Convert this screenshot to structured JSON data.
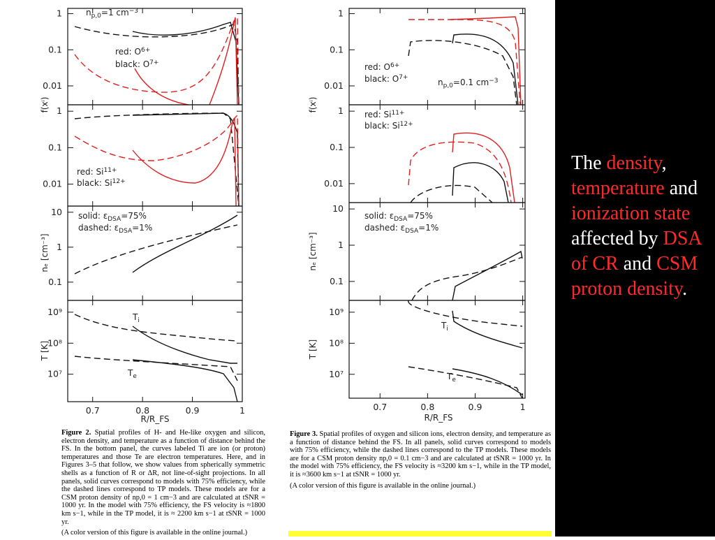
{
  "figures": [
    {
      "xlim": [
        0.65,
        1.0
      ],
      "xticks": [
        0.7,
        0.8,
        0.9,
        1
      ],
      "xlabel": "R/R_FS",
      "ylabels": [
        "f(xⁱ)",
        "nₑ [cm⁻³]",
        "T [K]"
      ],
      "log_y": true,
      "panels": [
        {
          "ylim": [
            0.003,
            1.4
          ],
          "yticks": [
            1,
            0.1,
            0.01
          ],
          "annotations": [
            [
              {
                "t": "n"
              },
              {
                "t": "p,0",
                "s": "sub"
              },
              {
                "t": "=1  cm"
              },
              {
                "t": "−3",
                "s": "sup"
              }
            ],
            [
              {
                "t": "red:   O"
              },
              {
                "t": "6+",
                "s": "sup"
              }
            ],
            [
              {
                "t": "black: O"
              },
              {
                "t": "7+",
                "s": "sup"
              }
            ]
          ]
        },
        {
          "ylim": [
            0.0025,
            1.5
          ],
          "yticks": [
            1,
            0.1,
            0.01
          ],
          "annotations": [
            [
              {
                "t": "red:   Si"
              },
              {
                "t": "11+",
                "s": "sup"
              }
            ],
            [
              {
                "t": "black: Si"
              },
              {
                "t": "12+",
                "s": "sup"
              }
            ]
          ]
        },
        {
          "ylim": [
            0.03,
            15
          ],
          "yticks": [
            10,
            1,
            0.1
          ],
          "annotations": [
            [
              {
                "t": "solid:    ε"
              },
              {
                "t": "DSA",
                "s": "sub"
              },
              {
                "t": "=75%"
              }
            ],
            [
              {
                "t": "dashed: ε"
              },
              {
                "t": "DSA",
                "s": "sub"
              },
              {
                "t": "=1%"
              }
            ]
          ]
        },
        {
          "ylim": [
            1300000,
            2400000000
          ],
          "yticks": [
            {
              "value": 1000000000,
              "label": "10⁹"
            },
            {
              "value": 100000000,
              "label": "10⁸"
            },
            {
              "value": 10000000,
              "label": "10⁷"
            }
          ],
          "annotations": [
            [
              {
                "t": "T"
              },
              {
                "t": "i",
                "s": "sub"
              }
            ],
            [
              {
                "t": "T"
              },
              {
                "t": "e",
                "s": "sub"
              }
            ]
          ]
        }
      ]
    },
    {
      "xlim": [
        0.635,
        1.005
      ],
      "xticks": [
        0.7,
        0.8,
        0.9,
        1
      ],
      "xlabel": "R/R_FS",
      "ylabels": [
        "f(xⁱ)",
        "nₑ [cm⁻³]",
        "T [K]"
      ],
      "log_y": true,
      "panels": [
        {
          "ylim": [
            0.003,
            1.4
          ],
          "yticks": [
            1,
            0.1,
            0.01
          ],
          "annotations": [
            [
              {
                "t": "red:   O"
              },
              {
                "t": "6+",
                "s": "sup"
              }
            ],
            [
              {
                "t": "black: O"
              },
              {
                "t": "7+",
                "s": "sup"
              }
            ],
            [
              {
                "t": "n"
              },
              {
                "t": "p,0",
                "s": "sub"
              },
              {
                "t": "=0.1  cm"
              },
              {
                "t": "−3",
                "s": "sup"
              }
            ]
          ]
        },
        {
          "ylim": [
            0.003,
            1.5
          ],
          "yticks": [
            1,
            0.1,
            0.01
          ],
          "annotations": [
            [
              {
                "t": "red:   Si"
              },
              {
                "t": "11+",
                "s": "sup"
              }
            ],
            [
              {
                "t": "black: Si"
              },
              {
                "t": "12+",
                "s": "sup"
              }
            ]
          ]
        },
        {
          "ylim": [
            0.03,
            15
          ],
          "yticks": [
            10,
            1,
            0.1
          ],
          "annotations": [
            [
              {
                "t": "solid:    ε"
              },
              {
                "t": "DSA",
                "s": "sub"
              },
              {
                "t": "=75%"
              }
            ],
            [
              {
                "t": "dashed: ε"
              },
              {
                "t": "DSA",
                "s": "sub"
              },
              {
                "t": "=1%"
              }
            ]
          ]
        },
        {
          "ylim": [
            1700000,
            2400000000
          ],
          "yticks": [
            {
              "value": 1000000000,
              "label": "10⁹"
            },
            {
              "value": 100000000,
              "label": "10⁸"
            },
            {
              "value": 10000000,
              "label": "10⁷"
            }
          ],
          "annotations": [
            [
              {
                "t": "T"
              },
              {
                "t": "i",
                "s": "sub"
              }
            ],
            [
              {
                "t": "T"
              },
              {
                "t": "e",
                "s": "sub"
              }
            ]
          ]
        }
      ]
    }
  ],
  "captions": [
    {
      "label": "Figure 2.",
      "text": " Spatial profiles of H- and He-like oxygen and silicon, electron density, and temperature as a function of distance behind the FS. In the bottom panel, the curves labeled Ti are ion (or proton) temperatures and those Te are electron temperatures. Here, and in Figures 3–5 that follow, we show values from spherically symmetric shells as a function of R or ΔR, not line-of-sight projections. In all panels, solid curves correspond to models with 75% efficiency, while the dashed lines correspond to TP models. These models are for a CSM proton density of np,0 = 1 cm−3 and are calculated at tSNR = 1000 yr. In the model with 75% efficiency, the FS velocity is ≈1800 km s−1, while in the TP model, it is ≈ 2200 km s−1 at tSNR = 1000 yr.",
      "note": "(A color version of this figure is available in the online journal.)"
    },
    {
      "label": "Figure 3.",
      "text": " Spatial profiles of oxygen and silicon ions, electron density, and temperature as a function of distance behind the FS. In all panels, solid curves correspond to models with 75% efficiency, while the dashed lines correspond to the TP models. These models are for a CSM proton density np,0 = 0.1 cm−3 and are calculated at tSNR = 1000 yr. In the model with 75% efficiency, the FS velocity is ≈3200 km s−1, while in the TP model, it is ≈3600 km s−1 at tSNR = 1000 yr.",
      "note": "(A color version of this figure is available in the online journal.)"
    }
  ],
  "slide": {
    "accent": "#ff2a2a",
    "segments": [
      {
        "t": "The "
      },
      {
        "t": "density",
        "accent": true
      },
      {
        "t": ", "
      },
      {
        "t": "temperature",
        "accent": true
      },
      {
        "t": " and "
      },
      {
        "t": "ionization state",
        "accent": true
      },
      {
        "t": " affected by "
      },
      {
        "t": "DSA of CR",
        "accent": true
      },
      {
        "t": " and "
      },
      {
        "t": "CSM proton density",
        "accent": true
      },
      {
        "t": "."
      }
    ]
  }
}
